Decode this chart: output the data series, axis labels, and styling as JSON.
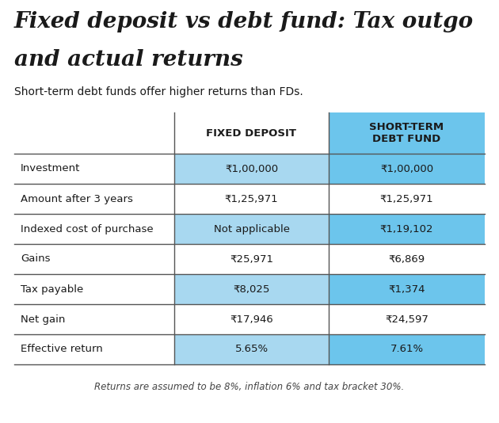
{
  "title_line1": "Fixed deposit vs debt fund: Tax outgo",
  "title_line2": "and actual returns",
  "subtitle": "Short-term debt funds offer higher returns than FDs.",
  "col_headers": [
    "FIXED DEPOSIT",
    "SHORT-TERM\nDEBT FUND"
  ],
  "row_labels": [
    "Investment",
    "Amount after 3 years",
    "Indexed cost of purchase",
    "Gains",
    "Tax payable",
    "Net gain",
    "Effective return"
  ],
  "fd_values": [
    "₹1,00,000",
    "₹1,25,971",
    "Not applicable",
    "₹25,971",
    "₹8,025",
    "₹17,946",
    "5.65%"
  ],
  "debt_values": [
    "₹1,00,000",
    "₹1,25,971",
    "₹1,19,102",
    "₹6,869",
    "₹1,374",
    "₹24,597",
    "7.61%"
  ],
  "highlighted_rows": [
    0,
    2,
    4,
    6
  ],
  "highlight_color_fd": "#a8d8f0",
  "highlight_color_debt": "#6cc5ec",
  "normal_color": "#ffffff",
  "footer": "Returns are assumed to be 8%, inflation 6% and tax bracket 30%.",
  "bg_color": "#ffffff",
  "text_color_dark": "#1a1a1a",
  "line_color": "#555555"
}
